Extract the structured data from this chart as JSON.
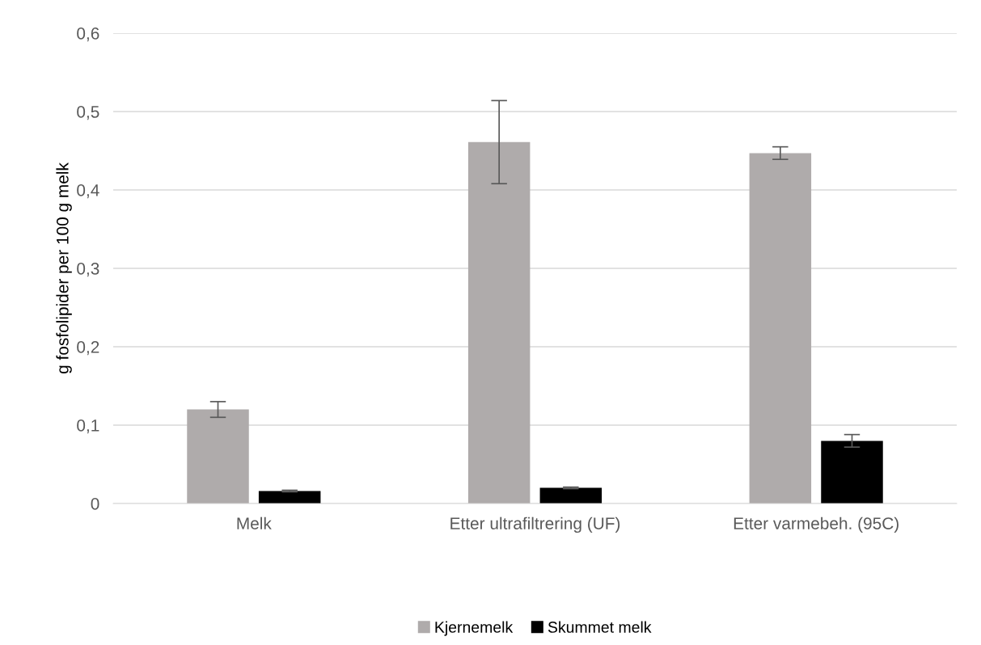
{
  "chart_data": {
    "type": "bar",
    "ylabel": "g fosfolipider per 100 g melk",
    "categories": [
      "Melk",
      "Etter ultrafiltrering (UF)",
      "Etter varmebeh. (95C)"
    ],
    "series": [
      {
        "name": "Kjernemelk",
        "color": "#afabab",
        "values": [
          0.12,
          0.461,
          0.447
        ],
        "errors": [
          0.01,
          0.053,
          0.008
        ]
      },
      {
        "name": "Skummet melk",
        "color": "#000000",
        "values": [
          0.016,
          0.02,
          0.08
        ],
        "errors": [
          0.001,
          0.001,
          0.008
        ]
      }
    ],
    "ylim": [
      0,
      0.6
    ],
    "yticks": [
      {
        "value": 0,
        "label": "0"
      },
      {
        "value": 0.1,
        "label": "0,1"
      },
      {
        "value": 0.2,
        "label": "0,2"
      },
      {
        "value": 0.3,
        "label": "0,3"
      },
      {
        "value": 0.4,
        "label": "0,4"
      },
      {
        "value": 0.5,
        "label": "0,5"
      },
      {
        "value": 0.6,
        "label": "0,6"
      }
    ],
    "grid": "y",
    "legend": "bottom"
  }
}
